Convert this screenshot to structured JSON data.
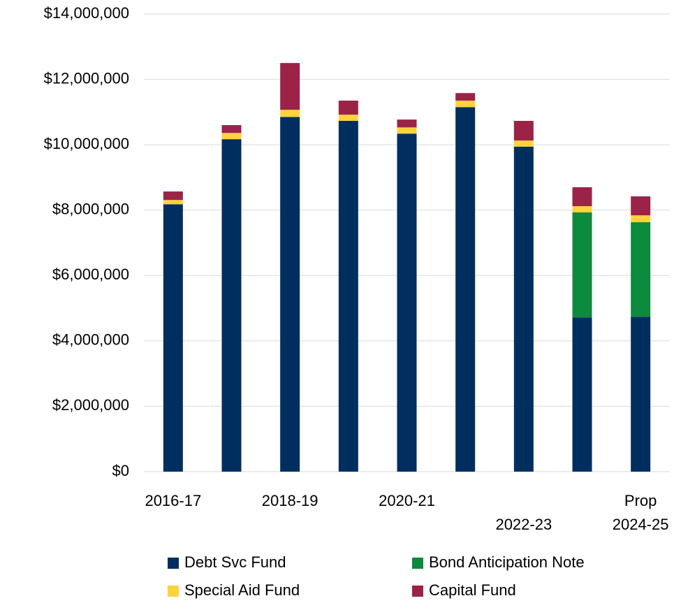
{
  "chart_data": {
    "type": "stacked_bar",
    "categories": [
      "2016-17",
      null,
      "2018-19",
      null,
      "2020-21",
      null,
      "2022-23",
      null,
      "Prop 2024-25"
    ],
    "series": [
      {
        "name": "Debt Svc Fund",
        "color": "#002f5f",
        "values": [
          8180000,
          10170000,
          10850000,
          10730000,
          10340000,
          11150000,
          9940000,
          4720000,
          4740000
        ]
      },
      {
        "name": "Bond Anticipation Note",
        "color": "#0c8a3d",
        "values": [
          0,
          0,
          0,
          0,
          0,
          0,
          0,
          3210000,
          2890000
        ]
      },
      {
        "name": "Special Aid Fund",
        "color": "#ffd23f",
        "values": [
          130000,
          190000,
          220000,
          190000,
          190000,
          200000,
          190000,
          190000,
          210000
        ]
      },
      {
        "name": "Capital Fund",
        "color": "#9b2348",
        "values": [
          260000,
          240000,
          1430000,
          430000,
          240000,
          230000,
          600000,
          580000,
          580000
        ]
      }
    ],
    "ylim": [
      0,
      14000000
    ],
    "yticks": [
      {
        "value": 0,
        "label": "$0"
      },
      {
        "value": 2000000,
        "label": "$2,000,000"
      },
      {
        "value": 4000000,
        "label": "$4,000,000"
      },
      {
        "value": 6000000,
        "label": "$6,000,000"
      },
      {
        "value": 8000000,
        "label": "$8,000,000"
      },
      {
        "value": 10000000,
        "label": "$10,000,000"
      },
      {
        "value": 12000000,
        "label": "$12,000,000"
      },
      {
        "value": 14000000,
        "label": "$14,000,000"
      }
    ],
    "grid": true
  }
}
